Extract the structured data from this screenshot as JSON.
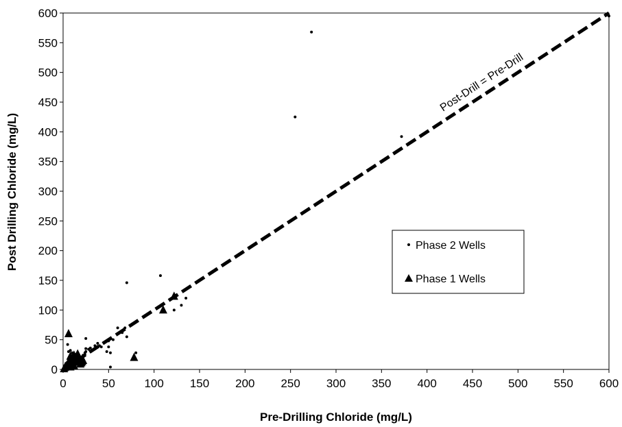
{
  "chart_data": {
    "type": "scatter",
    "title": "",
    "xlabel": "Pre-Drilling Chloride (mg/L)",
    "ylabel": "Post Drilling Chloride (mg/L)",
    "xlim": [
      0,
      600
    ],
    "ylim": [
      0,
      600
    ],
    "xticks": [
      0,
      50,
      100,
      150,
      200,
      250,
      300,
      350,
      400,
      450,
      500,
      550,
      600
    ],
    "yticks": [
      0,
      50,
      100,
      150,
      200,
      250,
      300,
      350,
      400,
      450,
      500,
      550,
      600
    ],
    "grid": false,
    "legend_position": "right",
    "reference_line": {
      "label": "Post-Drill = Pre-Drill",
      "x": [
        0,
        600
      ],
      "y": [
        0,
        600
      ],
      "style": "dashed"
    },
    "series": [
      {
        "name": "Phase 2 Wells",
        "marker": "dot",
        "x": [
          1,
          2,
          3,
          4,
          5,
          6,
          7,
          8,
          9,
          10,
          11,
          12,
          13,
          14,
          15,
          16,
          17,
          18,
          19,
          20,
          22,
          24,
          25,
          3,
          5,
          7,
          9,
          11,
          13,
          15,
          2,
          4,
          6,
          8,
          10,
          12,
          14,
          16,
          18,
          20,
          6,
          8,
          10,
          12,
          14,
          25,
          28,
          30,
          32,
          35,
          38,
          40,
          42,
          45,
          48,
          50,
          52,
          55,
          60,
          65,
          68,
          70,
          80,
          52,
          50,
          70,
          107,
          122,
          130,
          135,
          255,
          273,
          372,
          600,
          25,
          24,
          22,
          5
        ],
        "y": [
          1,
          2,
          4,
          3,
          6,
          5,
          8,
          7,
          10,
          9,
          12,
          11,
          14,
          13,
          15,
          16,
          17,
          15,
          18,
          20,
          22,
          25,
          52,
          10,
          12,
          15,
          18,
          20,
          22,
          25,
          5,
          7,
          9,
          12,
          14,
          16,
          18,
          12,
          10,
          14,
          30,
          32,
          28,
          26,
          24,
          30,
          34,
          36,
          32,
          40,
          44,
          40,
          38,
          45,
          30,
          48,
          28,
          50,
          70,
          62,
          70,
          55,
          28,
          4,
          38,
          146,
          158,
          100,
          108,
          120,
          425,
          568,
          392,
          595,
          35,
          28,
          24,
          42
        ]
      },
      {
        "name": "Phase 1 Wells",
        "marker": "triangle",
        "x": [
          1,
          2,
          3,
          4,
          5,
          6,
          7,
          8,
          9,
          10,
          11,
          12,
          13,
          14,
          15,
          16,
          17,
          18,
          19,
          20,
          21,
          22,
          6,
          8,
          10,
          12,
          14,
          16,
          18,
          20,
          8,
          78,
          110,
          122
        ],
        "y": [
          1,
          3,
          5,
          7,
          9,
          11,
          13,
          15,
          12,
          10,
          8,
          6,
          14,
          16,
          18,
          20,
          12,
          14,
          9,
          11,
          13,
          15,
          60,
          22,
          18,
          24,
          20,
          26,
          16,
          14,
          4,
          20,
          100,
          123
        ]
      }
    ]
  }
}
